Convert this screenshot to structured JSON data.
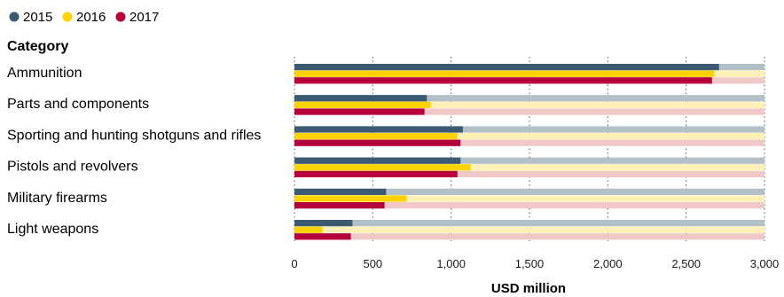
{
  "chart_data": {
    "type": "bar",
    "orientation": "horizontal",
    "category_header": "Category",
    "categories": [
      "Ammunition",
      "Parts and components",
      "Sporting and hunting shotguns and rifles",
      "Pistols and revolvers",
      "Military firearms",
      "Light weapons"
    ],
    "series": [
      {
        "name": "2015",
        "color": "#3d5a73",
        "track_color": "#b4c0c8",
        "values": [
          2710,
          845,
          1075,
          1060,
          585,
          370
        ]
      },
      {
        "name": "2016",
        "color": "#ffd200",
        "track_color": "#fff0b5",
        "values": [
          2680,
          870,
          1040,
          1125,
          715,
          180
        ]
      },
      {
        "name": "2017",
        "color": "#b5003b",
        "track_color": "#f0c8c8",
        "values": [
          2665,
          830,
          1060,
          1040,
          575,
          360
        ]
      }
    ],
    "xlim": [
      0,
      3000
    ],
    "xticks": [
      "0",
      "500",
      "1,000",
      "1,500",
      "2,000",
      "2,500",
      "3,000"
    ],
    "xlabel": "USD million",
    "grid": true,
    "legend_position": "top-left"
  }
}
